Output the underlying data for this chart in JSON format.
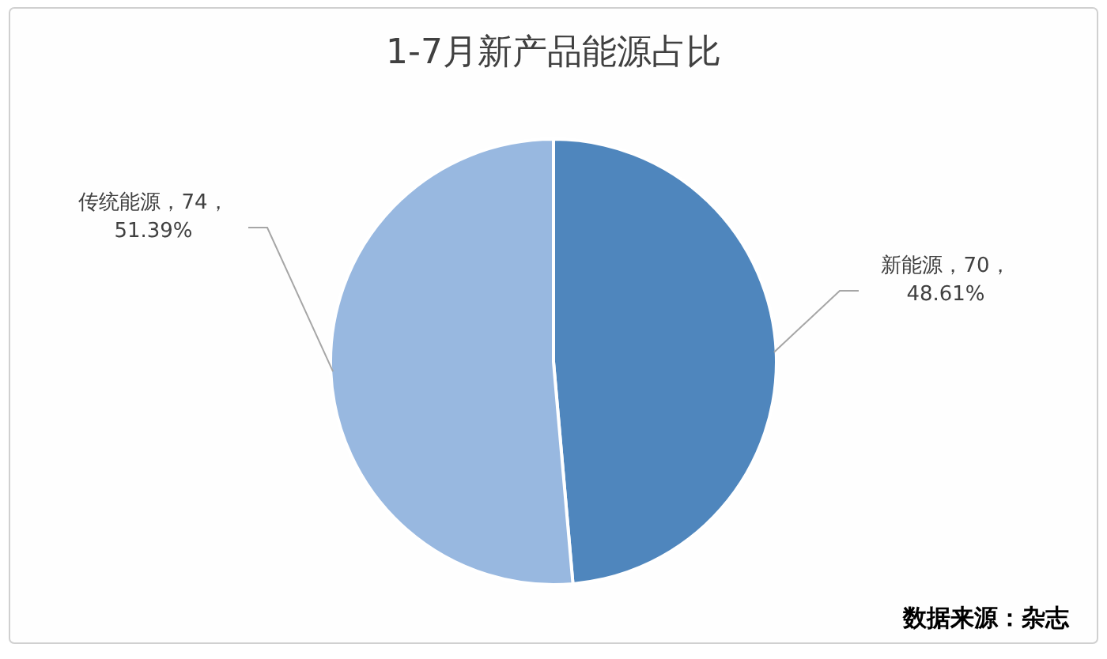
{
  "chart_data": {
    "type": "pie",
    "title": "1-7月新产品能源占比",
    "categories": [
      "新能源",
      "传统能源"
    ],
    "values": [
      70,
      74
    ],
    "value_labels": [
      "70，\n48.61%",
      "74，\n51.39%"
    ],
    "colors": [
      "#4f86bd",
      "#98b8e0"
    ],
    "legend": false,
    "annotations": [
      "数据来源：杂志"
    ]
  }
}
